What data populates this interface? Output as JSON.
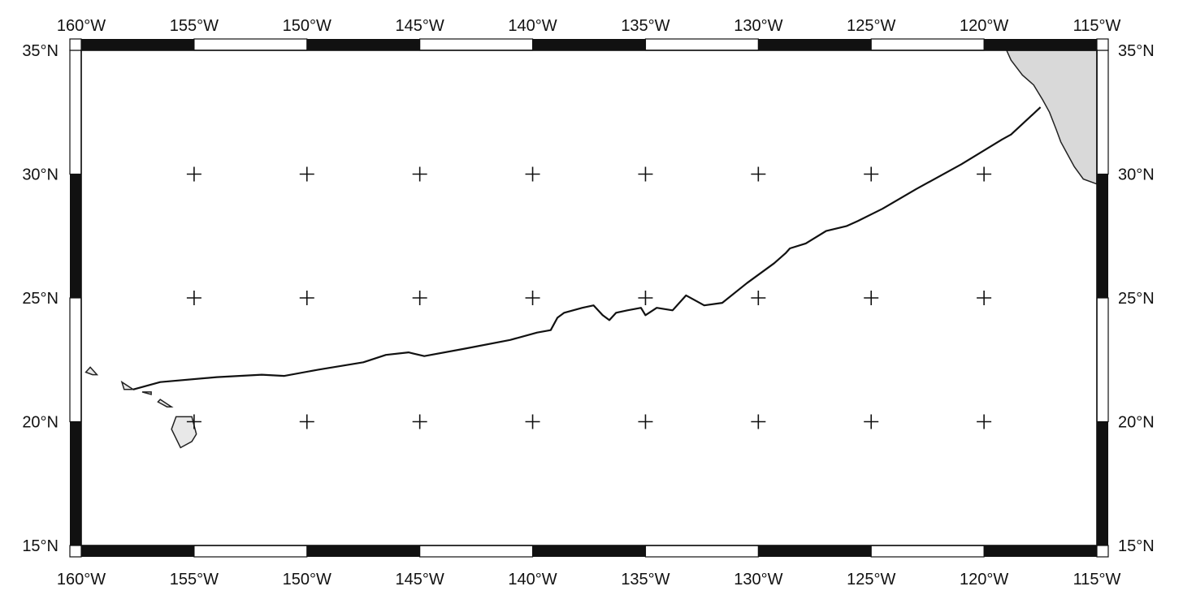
{
  "map": {
    "lon_range": [
      -160,
      -115
    ],
    "lat_range": [
      15,
      35
    ],
    "lon_labels_top": [
      "160°W",
      "155°W",
      "150°W",
      "145°W",
      "140°W",
      "135°W",
      "130°W",
      "125°W",
      "120°W",
      "115°W"
    ],
    "lon_labels_bottom": [
      "160°W",
      "155°W",
      "150°W",
      "145°W",
      "140°W",
      "135°W",
      "130°W",
      "125°W",
      "120°W",
      "115°W"
    ],
    "lat_labels_left": [
      "35°N",
      "30°N",
      "25°N",
      "20°N",
      "15°N"
    ],
    "lat_labels_right": [
      "35°N",
      "30°N",
      "25°N",
      "20°N",
      "15°N"
    ],
    "lon_ticks": [
      -160,
      -155,
      -150,
      -145,
      -140,
      -135,
      -130,
      -125,
      -120,
      -115
    ],
    "lat_ticks": [
      35,
      30,
      25,
      20,
      15
    ],
    "grid_crosses": {
      "lons": [
        -155,
        -150,
        -145,
        -140,
        -135,
        -130,
        -125,
        -120
      ],
      "lats": [
        30,
        25,
        20
      ]
    },
    "track": [
      [
        -157.7,
        21.3
      ],
      [
        -156.5,
        21.6
      ],
      [
        -154.0,
        21.8
      ],
      [
        -152.0,
        21.9
      ],
      [
        -151.0,
        21.85
      ],
      [
        -149.5,
        22.1
      ],
      [
        -147.5,
        22.4
      ],
      [
        -146.5,
        22.7
      ],
      [
        -145.5,
        22.8
      ],
      [
        -144.8,
        22.65
      ],
      [
        -143.0,
        22.95
      ],
      [
        -141.0,
        23.3
      ],
      [
        -139.8,
        23.6
      ],
      [
        -139.2,
        23.7
      ],
      [
        -138.9,
        24.2
      ],
      [
        -138.6,
        24.4
      ],
      [
        -137.8,
        24.6
      ],
      [
        -137.3,
        24.7
      ],
      [
        -136.9,
        24.3
      ],
      [
        -136.6,
        24.1
      ],
      [
        -136.3,
        24.4
      ],
      [
        -135.8,
        24.5
      ],
      [
        -135.2,
        24.6
      ],
      [
        -135.0,
        24.3
      ],
      [
        -134.5,
        24.6
      ],
      [
        -133.8,
        24.5
      ],
      [
        -133.2,
        25.1
      ],
      [
        -132.8,
        24.9
      ],
      [
        -132.4,
        24.7
      ],
      [
        -131.6,
        24.8
      ],
      [
        -130.5,
        25.6
      ],
      [
        -129.3,
        26.4
      ],
      [
        -128.8,
        26.8
      ],
      [
        -128.6,
        27.0
      ],
      [
        -127.9,
        27.2
      ],
      [
        -127.0,
        27.7
      ],
      [
        -126.1,
        27.9
      ],
      [
        -125.6,
        28.1
      ],
      [
        -124.5,
        28.6
      ],
      [
        -123.0,
        29.4
      ],
      [
        -121.0,
        30.4
      ],
      [
        -119.2,
        31.4
      ],
      [
        -118.8,
        31.6
      ],
      [
        -117.5,
        32.7
      ]
    ],
    "coastline_land": [
      [
        -118.8,
        34.6
      ],
      [
        -118.3,
        34.0
      ],
      [
        -117.8,
        33.6
      ],
      [
        -117.4,
        33.0
      ],
      [
        -117.1,
        32.5
      ],
      [
        -116.8,
        31.8
      ],
      [
        -116.6,
        31.3
      ],
      [
        -116.3,
        30.8
      ],
      [
        -116.0,
        30.3
      ],
      [
        -115.6,
        29.8
      ],
      [
        -115.0,
        29.6
      ],
      [
        -115.0,
        35.0
      ],
      [
        -119.0,
        35.0
      ]
    ],
    "hawaii_islands": [
      [
        [
          -154.9,
          19.5
        ],
        [
          -155.1,
          20.2
        ],
        [
          -155.8,
          20.2
        ],
        [
          -156.0,
          19.7
        ],
        [
          -155.6,
          18.95
        ],
        [
          -155.1,
          19.2
        ]
      ],
      [
        [
          -156.0,
          20.6
        ],
        [
          -156.5,
          20.9
        ],
        [
          -156.6,
          20.8
        ],
        [
          -156.2,
          20.6
        ]
      ],
      [
        [
          -156.9,
          21.1
        ],
        [
          -157.3,
          21.2
        ],
        [
          -156.9,
          21.2
        ]
      ],
      [
        [
          -157.7,
          21.3
        ],
        [
          -158.2,
          21.6
        ],
        [
          -158.1,
          21.3
        ]
      ],
      [
        [
          -159.3,
          21.9
        ],
        [
          -159.6,
          22.2
        ],
        [
          -159.8,
          22.0
        ],
        [
          -159.5,
          21.9
        ]
      ]
    ]
  }
}
